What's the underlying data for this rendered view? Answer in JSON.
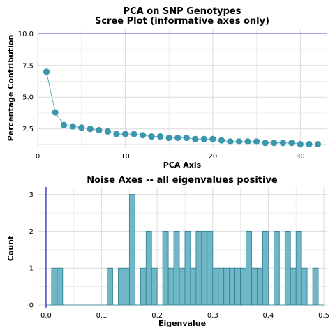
{
  "chart_data": [
    {
      "type": "scatter",
      "title": "PCA on SNP Genotypes",
      "subtitle": "Scree Plot (informative axes only)",
      "xlabel": "PCA Axis",
      "ylabel": "Percentage Contribution",
      "xlim": [
        0,
        33
      ],
      "ylim": [
        1.0,
        10.4
      ],
      "xticks": [
        0,
        10,
        20,
        30
      ],
      "yticks": [
        2.5,
        5.0,
        7.5,
        10.0
      ],
      "ytick_labels": [
        "2.5",
        "5.0",
        "7.5",
        "10.0"
      ],
      "reference_line": {
        "y": 10.0,
        "color": "#1a1acc"
      },
      "connect_points": true,
      "grid": true,
      "color": "#3a97ad",
      "x": [
        1,
        2,
        3,
        4,
        5,
        6,
        7,
        8,
        9,
        10,
        11,
        12,
        13,
        14,
        15,
        16,
        17,
        18,
        19,
        20,
        21,
        22,
        23,
        24,
        25,
        26,
        27,
        28,
        29,
        30,
        31,
        32
      ],
      "y": [
        7.0,
        3.8,
        2.8,
        2.7,
        2.6,
        2.5,
        2.4,
        2.3,
        2.1,
        2.1,
        2.1,
        2.0,
        1.9,
        1.9,
        1.8,
        1.8,
        1.8,
        1.7,
        1.7,
        1.7,
        1.6,
        1.5,
        1.5,
        1.5,
        1.5,
        1.4,
        1.4,
        1.4,
        1.4,
        1.3,
        1.3,
        1.3
      ]
    },
    {
      "type": "bar",
      "title": "Noise Axes -- all eigenvalues positive",
      "xlabel": "Eigenvalue",
      "ylabel": "Count",
      "xlim": [
        -0.015,
        0.505
      ],
      "ylim": [
        0,
        3.2
      ],
      "xticks": [
        0.0,
        0.1,
        0.2,
        0.3,
        0.4,
        0.5
      ],
      "xtick_labels": [
        "0.0",
        "0.1",
        "0.2",
        "0.3",
        "0.4",
        "0.5"
      ],
      "yticks": [
        0,
        1,
        2,
        3
      ],
      "reference_line": {
        "x": 0.0,
        "color": "#1a1acc"
      },
      "bin_start": 0.0,
      "bin_width": 0.01,
      "grid": true,
      "color": "#6fb7c7",
      "edge_color": "#2f7f95",
      "counts": [
        0,
        1,
        1,
        0,
        0,
        0,
        0,
        0,
        0,
        0,
        0,
        1,
        0,
        1,
        1,
        3,
        0,
        1,
        2,
        1,
        0,
        2,
        1,
        2,
        1,
        2,
        1,
        2,
        2,
        2,
        1,
        1,
        1,
        1,
        1,
        1,
        2,
        1,
        1,
        2,
        0,
        2,
        0,
        2,
        1,
        2,
        1,
        0,
        1,
        0
      ]
    }
  ]
}
